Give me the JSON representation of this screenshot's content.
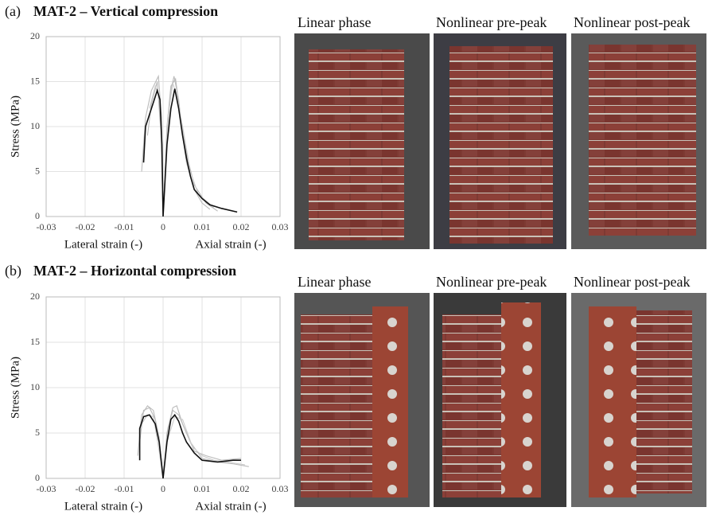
{
  "chart_data": [
    {
      "type": "line",
      "panel_label": "(a)",
      "title": "MAT-2 – Vertical compression",
      "y_label": "Stress (MPa)",
      "x_label_left": "Lateral strain (-)",
      "x_label_right": "Axial strain (-)",
      "xlim": [
        -0.03,
        0.03
      ],
      "xticks": [
        -0.03,
        -0.02,
        -0.01,
        0,
        0.01,
        0.02,
        0.03
      ],
      "ylim": [
        0,
        20
      ],
      "yticks": [
        0,
        5,
        10,
        15,
        20
      ],
      "grid": true,
      "series": [
        {
          "color": "#bbbbbb",
          "x": [
            -0.0055,
            -0.0045,
            -0.003,
            -0.0012,
            -0.0004,
            0,
            0.001,
            0.002,
            0.0028,
            0.004,
            0.005,
            0.006,
            0.008,
            0.01,
            0.012
          ],
          "values": [
            5,
            11,
            14,
            15.6,
            11,
            0,
            9,
            14,
            15.6,
            13,
            9,
            6,
            3,
            1.5,
            0.8
          ]
        },
        {
          "color": "#bbbbbb",
          "x": [
            -0.004,
            -0.003,
            -0.0015,
            -0.0005,
            0,
            0.001,
            0.002,
            0.0032,
            0.0045,
            0.006,
            0.008,
            0.011,
            0.014
          ],
          "values": [
            9,
            12.5,
            15,
            9,
            0,
            10,
            14.5,
            15.3,
            11,
            7,
            3.5,
            1.5,
            0.6
          ]
        },
        {
          "color": "#cccccc",
          "x": [
            -0.0035,
            -0.002,
            -0.0008,
            0,
            0.0012,
            0.0025,
            0.0035,
            0.005,
            0.007,
            0.009,
            0.013
          ],
          "values": [
            12,
            14.5,
            13,
            0,
            11,
            14.8,
            13.5,
            10,
            5,
            2.5,
            1
          ]
        },
        {
          "color": "#111111",
          "x": [
            -0.005,
            -0.0045,
            -0.003,
            -0.0015,
            -0.0008,
            -0.0003,
            0,
            0.001,
            0.002,
            0.003,
            0.004,
            0.005,
            0.006,
            0.007,
            0.008,
            0.01,
            0.012,
            0.015,
            0.019
          ],
          "values": [
            6,
            10,
            12,
            14,
            13,
            8,
            0,
            8,
            12,
            14.2,
            12,
            9,
            6.5,
            4.5,
            3,
            2,
            1.3,
            0.9,
            0.5
          ]
        }
      ]
    },
    {
      "type": "line",
      "panel_label": "(b)",
      "title": "MAT-2 – Horizontal compression",
      "y_label": "Stress (MPa)",
      "x_label_left": "Lateral strain (-)",
      "x_label_right": "Axial strain (-)",
      "xlim": [
        -0.03,
        0.03
      ],
      "xticks": [
        -0.03,
        -0.02,
        -0.01,
        0,
        0.01,
        0.02,
        0.03
      ],
      "ylim": [
        0,
        20
      ],
      "yticks": [
        0,
        5,
        10,
        15,
        20
      ],
      "grid": true,
      "series": [
        {
          "color": "#bbbbbb",
          "x": [
            -0.0065,
            -0.0055,
            -0.004,
            -0.0025,
            -0.001,
            0,
            0.001,
            0.0025,
            0.0035,
            0.005,
            0.007,
            0.01,
            0.014,
            0.018,
            0.022
          ],
          "values": [
            2.5,
            7,
            8,
            7.5,
            4.5,
            0,
            5,
            7.8,
            8,
            6,
            4,
            2.2,
            1.8,
            1.6,
            1.3
          ]
        },
        {
          "color": "#bbbbbb",
          "x": [
            -0.006,
            -0.005,
            -0.0035,
            -0.002,
            -0.0008,
            0,
            0.0012,
            0.0025,
            0.004,
            0.006,
            0.008,
            0.011,
            0.015,
            0.02
          ],
          "values": [
            4,
            7.5,
            7.8,
            6.5,
            3.5,
            0,
            5.5,
            7.5,
            7,
            5,
            3,
            2.5,
            2,
            2.2
          ]
        },
        {
          "color": "#cccccc",
          "x": [
            -0.0055,
            -0.004,
            -0.0025,
            -0.001,
            0,
            0.001,
            0.003,
            0.005,
            0.0075,
            0.01,
            0.013,
            0.021
          ],
          "values": [
            6,
            7,
            6.8,
            3,
            0,
            4,
            6.8,
            6.5,
            3.5,
            2.5,
            2,
            1.5
          ]
        },
        {
          "color": "#111111",
          "x": [
            -0.006,
            -0.006,
            -0.005,
            -0.0035,
            -0.002,
            -0.001,
            0,
            0.001,
            0.002,
            0.003,
            0.004,
            0.005,
            0.006,
            0.008,
            0.01,
            0.014,
            0.018,
            0.02
          ],
          "values": [
            2,
            5.5,
            6.8,
            7,
            6,
            4,
            0,
            4,
            6.5,
            7,
            6.3,
            5,
            4,
            2.8,
            2,
            1.8,
            2,
            2
          ]
        }
      ]
    }
  ],
  "photo_captions": [
    [
      "Linear phase",
      "Nonlinear pre-peak",
      "Nonlinear post-peak"
    ],
    [
      "Linear phase",
      "Nonlinear pre-peak",
      "Nonlinear post-peak"
    ]
  ]
}
